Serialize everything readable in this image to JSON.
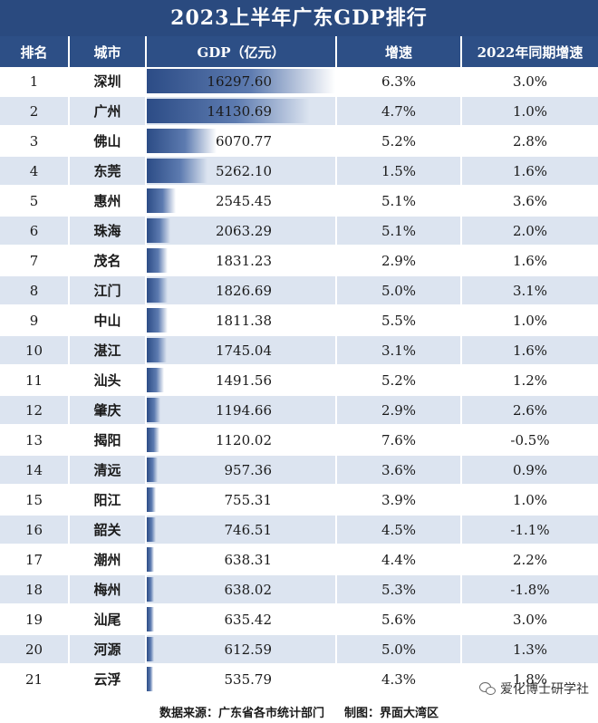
{
  "title": "2023上半年广东GDP排行",
  "headers": [
    "排名",
    "城市",
    "GDP（亿元）",
    "增速",
    "2022年同期增速"
  ],
  "chart_data": {
    "type": "table",
    "columns": [
      "排名",
      "城市",
      "GDP（亿元）",
      "增速",
      "2022年同期增速"
    ],
    "rows": [
      {
        "rank": "1",
        "city": "深圳",
        "gdp": "16297.60",
        "growth": "6.3%",
        "prev": "3.0%"
      },
      {
        "rank": "2",
        "city": "广州",
        "gdp": "14130.69",
        "growth": "4.7%",
        "prev": "1.0%"
      },
      {
        "rank": "3",
        "city": "佛山",
        "gdp": "6070.77",
        "growth": "5.2%",
        "prev": "2.8%"
      },
      {
        "rank": "4",
        "city": "东莞",
        "gdp": "5262.10",
        "growth": "1.5%",
        "prev": "1.6%"
      },
      {
        "rank": "5",
        "city": "惠州",
        "gdp": "2545.45",
        "growth": "5.1%",
        "prev": "3.6%"
      },
      {
        "rank": "6",
        "city": "珠海",
        "gdp": "2063.29",
        "growth": "5.1%",
        "prev": "2.0%"
      },
      {
        "rank": "7",
        "city": "茂名",
        "gdp": "1831.23",
        "growth": "2.9%",
        "prev": "1.6%"
      },
      {
        "rank": "8",
        "city": "江门",
        "gdp": "1826.69",
        "growth": "5.0%",
        "prev": "3.1%"
      },
      {
        "rank": "9",
        "city": "中山",
        "gdp": "1811.38",
        "growth": "5.5%",
        "prev": "1.0%"
      },
      {
        "rank": "10",
        "city": "湛江",
        "gdp": "1745.04",
        "growth": "3.1%",
        "prev": "1.6%"
      },
      {
        "rank": "11",
        "city": "汕头",
        "gdp": "1491.56",
        "growth": "5.2%",
        "prev": "1.2%"
      },
      {
        "rank": "12",
        "city": "肇庆",
        "gdp": "1194.66",
        "growth": "2.9%",
        "prev": "2.6%"
      },
      {
        "rank": "13",
        "city": "揭阳",
        "gdp": "1120.02",
        "growth": "7.6%",
        "prev": "-0.5%"
      },
      {
        "rank": "14",
        "city": "清远",
        "gdp": "957.36",
        "growth": "3.6%",
        "prev": "0.9%"
      },
      {
        "rank": "15",
        "city": "阳江",
        "gdp": "755.31",
        "growth": "3.9%",
        "prev": "1.0%"
      },
      {
        "rank": "16",
        "city": "韶关",
        "gdp": "746.51",
        "growth": "4.5%",
        "prev": "-1.1%"
      },
      {
        "rank": "17",
        "city": "潮州",
        "gdp": "638.31",
        "growth": "4.4%",
        "prev": "2.2%"
      },
      {
        "rank": "18",
        "city": "梅州",
        "gdp": "638.02",
        "growth": "5.3%",
        "prev": "-1.8%"
      },
      {
        "rank": "19",
        "city": "汕尾",
        "gdp": "635.42",
        "growth": "5.6%",
        "prev": "3.0%"
      },
      {
        "rank": "20",
        "city": "河源",
        "gdp": "612.59",
        "growth": "5.0%",
        "prev": "1.3%"
      },
      {
        "rank": "21",
        "city": "云浮",
        "gdp": "535.79",
        "growth": "4.3%",
        "prev": "1.8%"
      }
    ]
  },
  "footer": {
    "source": "数据来源：广东省各市统计部门",
    "made_by": "制图：界面大湾区"
  },
  "watermark": "爱化博士研学社",
  "colors": {
    "header_bg": "#2d4f86",
    "title_bg": "#2a4a7f",
    "stripe": "#dce4f0",
    "bar": "#2c4c86"
  }
}
